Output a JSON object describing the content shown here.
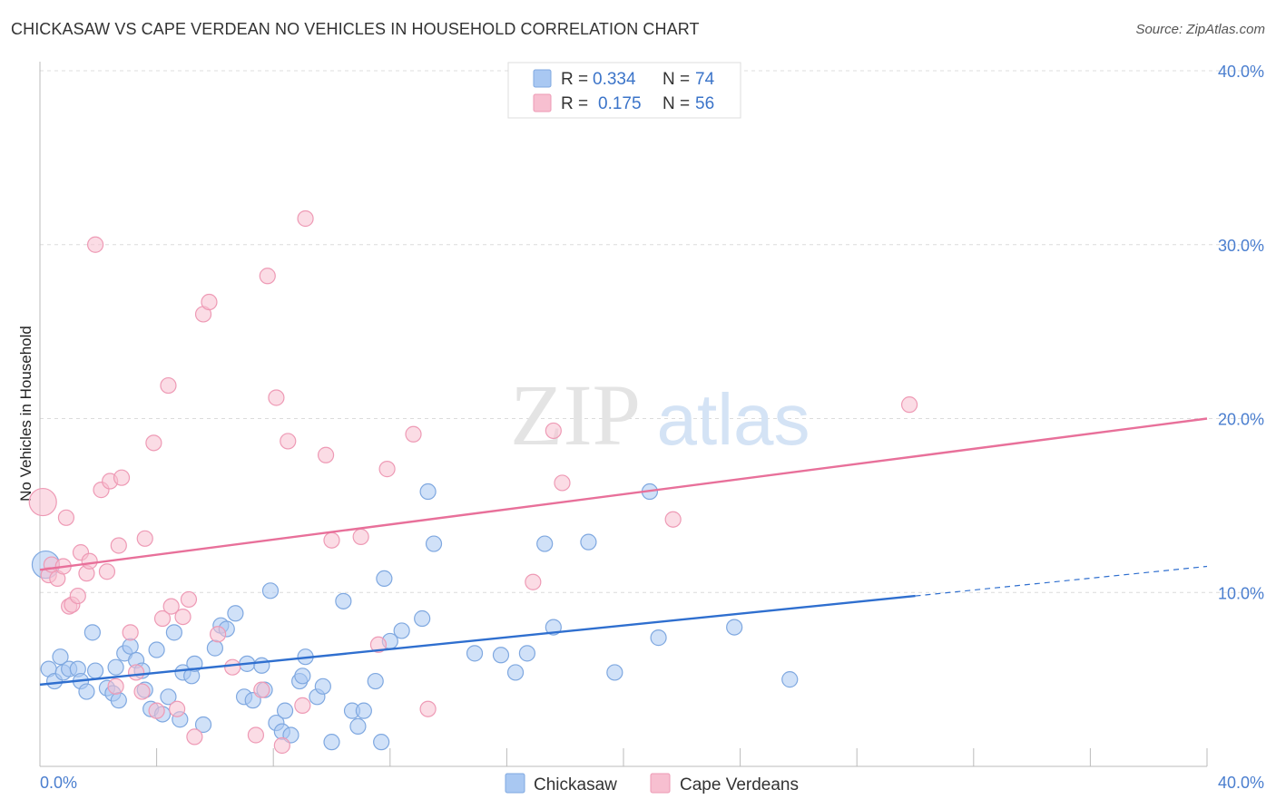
{
  "header": {
    "title": "CHICKASAW VS CAPE VERDEAN NO VEHICLES IN HOUSEHOLD CORRELATION CHART",
    "source": "Source: ZipAtlas.com"
  },
  "watermark": {
    "zip": "ZIP",
    "atlas": "atlas"
  },
  "legend": {
    "r_label": "R =",
    "n_label": "N =",
    "rows": [
      {
        "r": "0.334",
        "n": "74",
        "color": "#a9c8f2"
      },
      {
        "r": "0.175",
        "n": "56",
        "color": "#f7bfd0"
      }
    ]
  },
  "bottom_legend": [
    {
      "label": "Chickasaw",
      "color": "#a9c8f2"
    },
    {
      "label": "Cape Verdeans",
      "color": "#f7bfd0"
    }
  ],
  "chart_data": {
    "type": "scatter",
    "title": "CHICKASAW VS CAPE VERDEAN NO VEHICLES IN HOUSEHOLD CORRELATION CHART",
    "xlabel": "",
    "ylabel": "No Vehicles in Household",
    "xlim": [
      0,
      40
    ],
    "ylim": [
      0,
      40
    ],
    "x_tick_labels": [
      "0.0%",
      "40.0%"
    ],
    "y_ticks": [
      10,
      20,
      30,
      40
    ],
    "y_tick_labels": [
      "10.0%",
      "20.0%",
      "30.0%",
      "40.0%"
    ],
    "grid": true,
    "legend_position": "top-center",
    "series": [
      {
        "name": "Chickasaw",
        "color": "#a9c8f2",
        "stroke": "#7fa8e0",
        "trend": {
          "x": [
            0,
            30
          ],
          "y": [
            4.7,
            9.8
          ],
          "color": "#2f6fcf"
        },
        "trend_dashed": {
          "x": [
            30,
            40
          ],
          "y": [
            9.8,
            11.5
          ]
        },
        "points": [
          [
            0.2,
            11.6
          ],
          [
            0.3,
            5.6
          ],
          [
            0.5,
            4.9
          ],
          [
            0.7,
            6.3
          ],
          [
            0.8,
            5.4
          ],
          [
            1.0,
            5.6
          ],
          [
            1.3,
            5.6
          ],
          [
            1.4,
            4.9
          ],
          [
            1.6,
            4.3
          ],
          [
            1.8,
            7.7
          ],
          [
            1.9,
            5.5
          ],
          [
            2.3,
            4.5
          ],
          [
            2.5,
            4.2
          ],
          [
            2.6,
            5.7
          ],
          [
            2.7,
            3.8
          ],
          [
            2.9,
            6.5
          ],
          [
            3.1,
            6.9
          ],
          [
            3.3,
            6.1
          ],
          [
            3.5,
            5.5
          ],
          [
            3.6,
            4.4
          ],
          [
            3.8,
            3.3
          ],
          [
            4.0,
            6.7
          ],
          [
            4.2,
            3.0
          ],
          [
            4.4,
            4.0
          ],
          [
            4.6,
            7.7
          ],
          [
            4.8,
            2.7
          ],
          [
            4.9,
            5.4
          ],
          [
            5.2,
            5.2
          ],
          [
            5.3,
            5.9
          ],
          [
            5.6,
            2.4
          ],
          [
            6.0,
            6.8
          ],
          [
            6.2,
            8.1
          ],
          [
            6.4,
            7.9
          ],
          [
            6.7,
            8.8
          ],
          [
            7.0,
            4.0
          ],
          [
            7.1,
            5.9
          ],
          [
            7.3,
            3.8
          ],
          [
            7.6,
            5.8
          ],
          [
            7.7,
            4.4
          ],
          [
            7.9,
            10.1
          ],
          [
            8.1,
            2.5
          ],
          [
            8.3,
            2.0
          ],
          [
            8.4,
            3.2
          ],
          [
            8.6,
            1.8
          ],
          [
            8.9,
            4.9
          ],
          [
            9.0,
            5.2
          ],
          [
            9.1,
            6.3
          ],
          [
            9.5,
            4.0
          ],
          [
            9.7,
            4.6
          ],
          [
            10.0,
            1.4
          ],
          [
            10.4,
            9.5
          ],
          [
            10.7,
            3.2
          ],
          [
            10.9,
            2.3
          ],
          [
            11.1,
            3.2
          ],
          [
            11.5,
            4.9
          ],
          [
            11.7,
            1.4
          ],
          [
            11.8,
            10.8
          ],
          [
            12.0,
            7.2
          ],
          [
            12.4,
            7.8
          ],
          [
            13.1,
            8.5
          ],
          [
            13.3,
            15.8
          ],
          [
            13.5,
            12.8
          ],
          [
            14.9,
            6.5
          ],
          [
            15.8,
            6.4
          ],
          [
            16.3,
            5.4
          ],
          [
            16.7,
            6.5
          ],
          [
            17.3,
            12.8
          ],
          [
            17.6,
            8.0
          ],
          [
            18.8,
            12.9
          ],
          [
            19.7,
            5.4
          ],
          [
            20.9,
            15.8
          ],
          [
            21.2,
            7.4
          ],
          [
            23.8,
            8.0
          ],
          [
            25.7,
            5.0
          ]
        ]
      },
      {
        "name": "Cape Verdeans",
        "color": "#f7bfd0",
        "stroke": "#ee9ab5",
        "trend": {
          "x": [
            0,
            40
          ],
          "y": [
            11.3,
            20.0
          ],
          "color": "#e8709a"
        },
        "points": [
          [
            0.1,
            15.2
          ],
          [
            0.3,
            11.0
          ],
          [
            0.4,
            11.6
          ],
          [
            0.6,
            10.8
          ],
          [
            0.8,
            11.5
          ],
          [
            0.9,
            14.3
          ],
          [
            1.0,
            9.2
          ],
          [
            1.1,
            9.3
          ],
          [
            1.3,
            9.8
          ],
          [
            1.4,
            12.3
          ],
          [
            1.6,
            11.1
          ],
          [
            1.7,
            11.8
          ],
          [
            1.9,
            30.0
          ],
          [
            2.1,
            15.9
          ],
          [
            2.3,
            11.2
          ],
          [
            2.4,
            16.4
          ],
          [
            2.6,
            4.6
          ],
          [
            2.7,
            12.7
          ],
          [
            2.8,
            16.6
          ],
          [
            3.1,
            7.7
          ],
          [
            3.3,
            5.4
          ],
          [
            3.5,
            4.3
          ],
          [
            3.6,
            13.1
          ],
          [
            3.9,
            18.6
          ],
          [
            4.0,
            3.2
          ],
          [
            4.2,
            8.5
          ],
          [
            4.4,
            21.9
          ],
          [
            4.5,
            9.2
          ],
          [
            4.7,
            3.3
          ],
          [
            4.9,
            8.6
          ],
          [
            5.1,
            9.6
          ],
          [
            5.3,
            1.7
          ],
          [
            5.6,
            26.0
          ],
          [
            5.8,
            26.7
          ],
          [
            6.1,
            7.6
          ],
          [
            6.6,
            5.7
          ],
          [
            7.4,
            1.8
          ],
          [
            7.6,
            4.4
          ],
          [
            7.8,
            28.2
          ],
          [
            8.1,
            21.2
          ],
          [
            8.3,
            1.2
          ],
          [
            8.5,
            18.7
          ],
          [
            9.0,
            3.5
          ],
          [
            9.1,
            31.5
          ],
          [
            9.8,
            17.9
          ],
          [
            10.0,
            13.0
          ],
          [
            11.0,
            13.2
          ],
          [
            11.6,
            7.0
          ],
          [
            11.9,
            17.1
          ],
          [
            12.8,
            19.1
          ],
          [
            13.3,
            3.3
          ],
          [
            16.9,
            10.6
          ],
          [
            17.6,
            19.3
          ],
          [
            17.9,
            16.3
          ],
          [
            21.7,
            14.2
          ],
          [
            29.8,
            20.8
          ]
        ]
      }
    ]
  }
}
